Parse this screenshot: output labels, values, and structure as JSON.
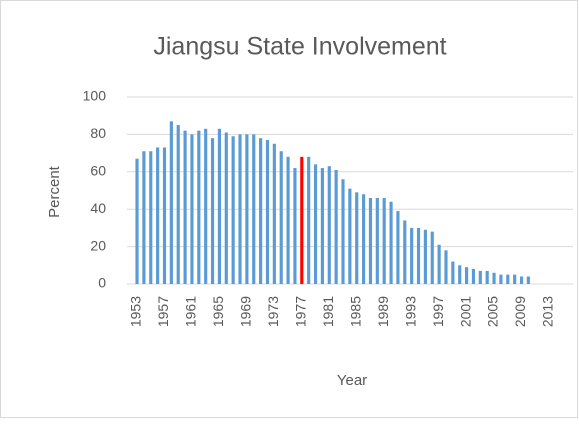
{
  "chart_data": {
    "type": "bar",
    "title": "Jiangsu State Involvement",
    "x_label": "Year",
    "y_label": "Percent",
    "categories": [
      "1953",
      null,
      null,
      null,
      "1957",
      null,
      null,
      null,
      "1961",
      null,
      null,
      null,
      "1965",
      null,
      null,
      null,
      "1969",
      null,
      null,
      null,
      "1973",
      null,
      null,
      null,
      "1977",
      null,
      null,
      null,
      "1981",
      null,
      null,
      null,
      "1985",
      null,
      null,
      null,
      "1989",
      null,
      null,
      null,
      "1993",
      null,
      null,
      null,
      "1997",
      null,
      null,
      null,
      "2001",
      null,
      null,
      null,
      "2005",
      null,
      null,
      null,
      "2009",
      null,
      null,
      null,
      "2013",
      null,
      null,
      null
    ],
    "values": [
      67,
      71,
      71,
      73,
      73,
      87,
      85,
      82,
      80,
      82,
      83,
      78,
      83,
      81,
      79,
      80,
      80,
      80,
      78,
      77,
      75,
      71,
      68,
      62,
      68,
      68,
      64,
      62,
      63,
      61,
      56,
      51,
      49,
      48,
      46,
      46,
      46,
      44,
      39,
      34,
      30,
      30,
      29,
      28,
      21,
      18,
      12,
      10,
      9,
      8,
      7,
      7,
      6,
      5,
      5,
      5,
      4,
      4,
      null,
      null,
      null,
      null,
      null,
      null
    ],
    "color": "#5b9bd5",
    "highlight": [
      {
        "index": 24,
        "color": "#ff0000"
      }
    ],
    "ylim": [
      0,
      100
    ],
    "yticks": [
      0,
      20,
      40,
      60,
      80,
      100
    ],
    "grid": true
  }
}
